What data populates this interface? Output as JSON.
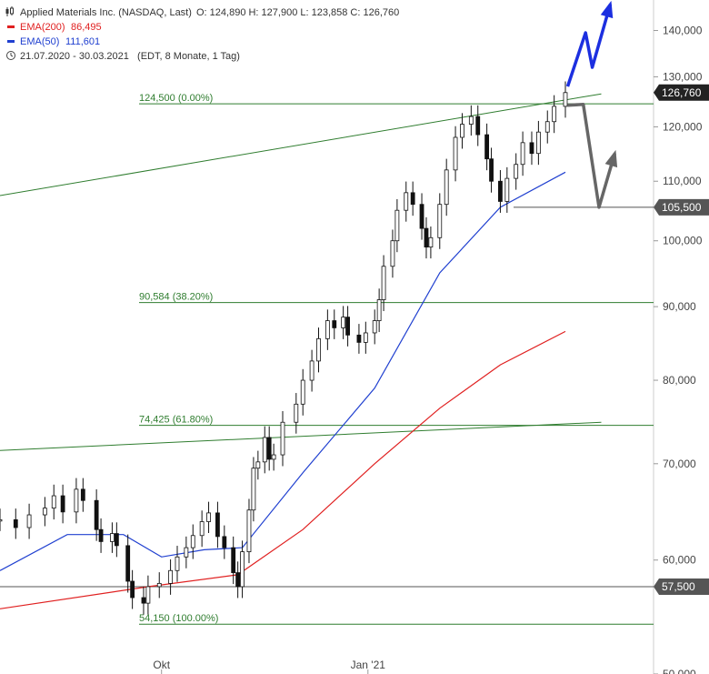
{
  "header": {
    "title": "Applied Materials Inc. (NASDAQ, Last)",
    "ohlc": "O: 124,890  H: 127,900  L: 123,858  C: 126,760",
    "legend": [
      {
        "label": "EMA(200)",
        "value": "86,495",
        "color": "#e02020"
      },
      {
        "label": "EMA(50)",
        "value": "111,601",
        "color": "#2040d0"
      }
    ],
    "range_info": "21.07.2020 - 30.03.2021   (EDT, 8 Monate, 1 Tag)"
  },
  "chart_data": {
    "type": "candlestick",
    "y_scale": "log",
    "ylim": [
      50000,
      147000
    ],
    "y_ticks": [
      50000,
      60000,
      70000,
      80000,
      90000,
      100000,
      110000,
      120000,
      130000,
      140000
    ],
    "y_tick_labels": [
      "50,000",
      "60,000",
      "70,000",
      "80,000",
      "90,000",
      "100,000",
      "110,000",
      "120,000",
      "130,000",
      "140,000"
    ],
    "x_range": [
      "2020-07-21",
      "2021-03-30"
    ],
    "x_ticks": [
      {
        "date": "2020-10-01",
        "label": "Okt"
      },
      {
        "date": "2021-01-01",
        "label": "Jan '21"
      }
    ],
    "series": [
      {
        "date": "2020-07-21",
        "close": 64000
      },
      {
        "date": "2020-07-28",
        "close": 63200
      },
      {
        "date": "2020-08-03",
        "close": 64500
      },
      {
        "date": "2020-08-10",
        "close": 65200
      },
      {
        "date": "2020-08-14",
        "close": 66500
      },
      {
        "date": "2020-08-18",
        "close": 64800
      },
      {
        "date": "2020-08-24",
        "close": 67200
      },
      {
        "date": "2020-08-27",
        "close": 66000
      },
      {
        "date": "2020-09-02",
        "close": 63000
      },
      {
        "date": "2020-09-04",
        "close": 61800
      },
      {
        "date": "2020-09-09",
        "close": 62600
      },
      {
        "date": "2020-09-11",
        "close": 61400
      },
      {
        "date": "2020-09-16",
        "close": 58000
      },
      {
        "date": "2020-09-18",
        "close": 56500
      },
      {
        "date": "2020-09-23",
        "close": 56000
      },
      {
        "date": "2020-09-25",
        "close": 57500
      },
      {
        "date": "2020-09-30",
        "close": 57800
      },
      {
        "date": "2020-10-05",
        "close": 59000
      },
      {
        "date": "2020-10-08",
        "close": 60300
      },
      {
        "date": "2020-10-12",
        "close": 61200
      },
      {
        "date": "2020-10-15",
        "close": 62400
      },
      {
        "date": "2020-10-19",
        "close": 63800
      },
      {
        "date": "2020-10-22",
        "close": 64700
      },
      {
        "date": "2020-10-26",
        "close": 62300
      },
      {
        "date": "2020-10-29",
        "close": 61200
      },
      {
        "date": "2020-11-02",
        "close": 58800
      },
      {
        "date": "2020-11-04",
        "close": 57500
      },
      {
        "date": "2020-11-06",
        "close": 60800
      },
      {
        "date": "2020-11-09",
        "close": 65000
      },
      {
        "date": "2020-11-11",
        "close": 69500
      },
      {
        "date": "2020-11-13",
        "close": 70200
      },
      {
        "date": "2020-11-16",
        "close": 73000
      },
      {
        "date": "2020-11-18",
        "close": 70500
      },
      {
        "date": "2020-11-20",
        "close": 71000
      },
      {
        "date": "2020-11-24",
        "close": 74800
      },
      {
        "date": "2020-11-30",
        "close": 77000
      },
      {
        "date": "2020-12-03",
        "close": 80000
      },
      {
        "date": "2020-12-07",
        "close": 82500
      },
      {
        "date": "2020-12-10",
        "close": 85500
      },
      {
        "date": "2020-12-14",
        "close": 88000
      },
      {
        "date": "2020-12-17",
        "close": 87000
      },
      {
        "date": "2020-12-21",
        "close": 88500
      },
      {
        "date": "2020-12-23",
        "close": 86000
      },
      {
        "date": "2020-12-28",
        "close": 85000
      },
      {
        "date": "2020-12-31",
        "close": 86300
      },
      {
        "date": "2021-01-04",
        "close": 88000
      },
      {
        "date": "2021-01-06",
        "close": 91000
      },
      {
        "date": "2021-01-08",
        "close": 96000
      },
      {
        "date": "2021-01-12",
        "close": 100000
      },
      {
        "date": "2021-01-14",
        "close": 105000
      },
      {
        "date": "2021-01-18",
        "close": 108000
      },
      {
        "date": "2021-01-21",
        "close": 106000
      },
      {
        "date": "2021-01-25",
        "close": 102000
      },
      {
        "date": "2021-01-27",
        "close": 99000
      },
      {
        "date": "2021-01-29",
        "close": 100500
      },
      {
        "date": "2021-02-02",
        "close": 106000
      },
      {
        "date": "2021-02-05",
        "close": 112000
      },
      {
        "date": "2021-02-09",
        "close": 118000
      },
      {
        "date": "2021-02-12",
        "close": 120500
      },
      {
        "date": "2021-02-16",
        "close": 122000
      },
      {
        "date": "2021-02-19",
        "close": 118500
      },
      {
        "date": "2021-02-23",
        "close": 114000
      },
      {
        "date": "2021-02-25",
        "close": 110000
      },
      {
        "date": "2021-03-01",
        "close": 106500
      },
      {
        "date": "2021-03-04",
        "close": 110500
      },
      {
        "date": "2021-03-08",
        "close": 113000
      },
      {
        "date": "2021-03-11",
        "close": 117000
      },
      {
        "date": "2021-03-15",
        "close": 115000
      },
      {
        "date": "2021-03-18",
        "close": 119000
      },
      {
        "date": "2021-03-22",
        "close": 121000
      },
      {
        "date": "2021-03-25",
        "close": 124000
      },
      {
        "date": "2021-03-30",
        "close": 126760
      }
    ],
    "ema200": [
      {
        "date": "2020-07-21",
        "value": 55500
      },
      {
        "date": "2020-09-25",
        "value": 57500
      },
      {
        "date": "2020-11-04",
        "value": 58600
      },
      {
        "date": "2020-12-03",
        "value": 63000
      },
      {
        "date": "2021-01-04",
        "value": 70000
      },
      {
        "date": "2021-02-02",
        "value": 76500
      },
      {
        "date": "2021-03-01",
        "value": 82000
      },
      {
        "date": "2021-03-30",
        "value": 86495
      }
    ],
    "ema50": [
      {
        "date": "2020-07-21",
        "value": 59000
      },
      {
        "date": "2020-08-20",
        "value": 62500
      },
      {
        "date": "2020-09-14",
        "value": 62500
      },
      {
        "date": "2020-10-01",
        "value": 60300
      },
      {
        "date": "2020-10-20",
        "value": 61000
      },
      {
        "date": "2020-11-06",
        "value": 61200
      },
      {
        "date": "2020-12-03",
        "value": 69000
      },
      {
        "date": "2021-01-04",
        "value": 79000
      },
      {
        "date": "2021-02-02",
        "value": 95000
      },
      {
        "date": "2021-03-01",
        "value": 105500
      },
      {
        "date": "2021-03-30",
        "value": 111601
      }
    ],
    "fib_levels": [
      {
        "value": 124500,
        "label": "124,500 (0.00%)"
      },
      {
        "value": 90584,
        "label": "90,584 (38.20%)"
      },
      {
        "value": 74425,
        "label": "74,425 (61.80%)"
      },
      {
        "value": 54150,
        "label": "54,150 (100.00%)"
      }
    ],
    "trendlines": [
      {
        "from": {
          "date": "2020-07-21",
          "value": 107500
        },
        "to": {
          "date": "2021-04-15",
          "value": 126500
        }
      },
      {
        "from": {
          "date": "2020-07-21",
          "value": 71500
        },
        "to": {
          "date": "2021-04-15",
          "value": 74800
        }
      }
    ],
    "support_lines": [
      {
        "value": 105500,
        "label": "105,500"
      },
      {
        "value": 57500,
        "label": "57,500"
      }
    ],
    "last_price": {
      "value": 126760,
      "label": "126,760"
    },
    "scenarios": [
      {
        "name": "bullish",
        "color": "#1c2fe0",
        "points": [
          {
            "date": "2021-03-31",
            "value": 128000
          },
          {
            "date": "2021-04-08",
            "value": 139500
          },
          {
            "date": "2021-04-11",
            "value": 132000
          },
          {
            "date": "2021-04-19",
            "value": 146000
          }
        ]
      },
      {
        "name": "bearish",
        "color": "#666666",
        "points": [
          {
            "date": "2021-03-31",
            "value": 124200
          },
          {
            "date": "2021-04-07",
            "value": 124400
          },
          {
            "date": "2021-04-14",
            "value": 105500
          },
          {
            "date": "2021-04-21",
            "value": 115000
          }
        ]
      }
    ]
  }
}
